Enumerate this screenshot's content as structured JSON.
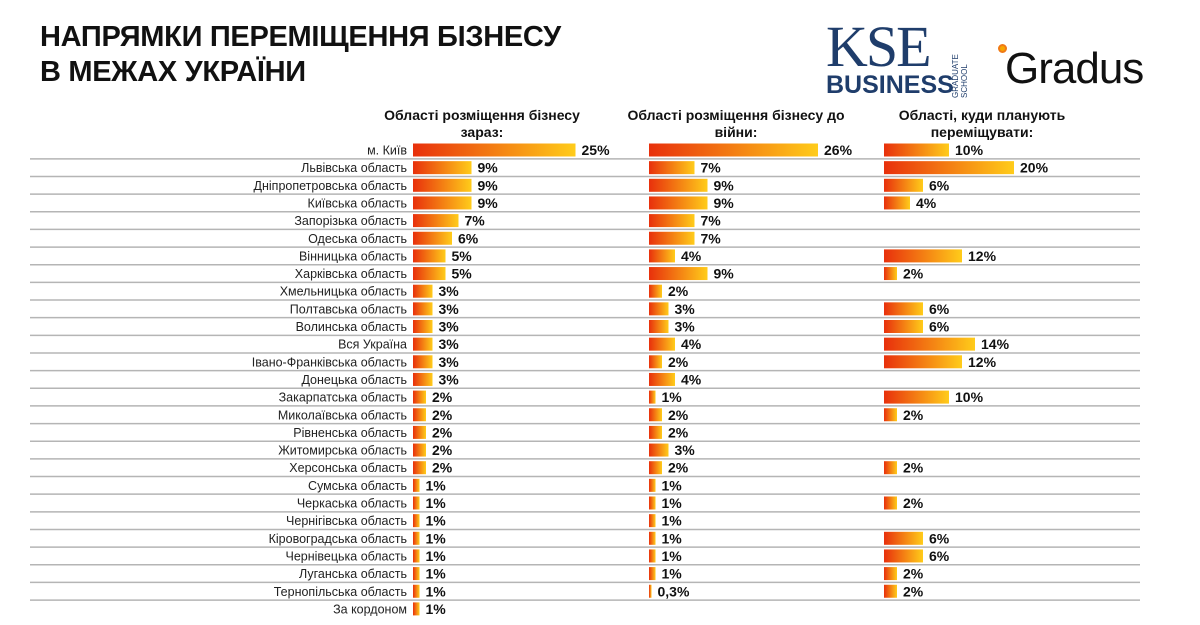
{
  "title_lines": [
    "НАПРЯМКИ ПЕРЕМІЩЕННЯ БІЗНЕСУ",
    "В МЕЖАХ УКРАЇНИ"
  ],
  "logos": {
    "kse": "KSE",
    "kse_sub": "GRADUATE SCHOOL",
    "kse_business": "BUSINESS",
    "gradus": "Gradus"
  },
  "colors": {
    "bar_start": "#e8300c",
    "bar_end": "#ffcc1a",
    "separator": "#b5b5b5"
  },
  "chart_data": {
    "type": "bar",
    "orientation": "horizontal",
    "categories": [
      "м. Київ",
      "Львівська область",
      "Дніпропетровська область",
      "Київська область",
      "Запорізька область",
      "Одеська область",
      "Вінницька область",
      "Харківська область",
      "Хмельницька область",
      "Полтавська область",
      "Волинська область",
      "Вся Україна",
      "Івано-Франківська область",
      "Донецька область",
      "Закарпатська область",
      "Миколаївська область",
      "Рівненська область",
      "Житомирська область",
      "Херсонська область",
      "Сумська область",
      "Черкаська область",
      "Чернігівська область",
      "Кіровоградська область",
      "Чернівецька область",
      "Луганська область",
      "Тернопільська область",
      "За кордоном"
    ],
    "series": [
      {
        "name": "Області розміщення бізнесу зараз:",
        "values": [
          25,
          9,
          9,
          9,
          7,
          6,
          5,
          5,
          3,
          3,
          3,
          3,
          3,
          3,
          2,
          2,
          2,
          2,
          2,
          1,
          1,
          1,
          1,
          1,
          1,
          1,
          1
        ],
        "labels": [
          "25%",
          "9%",
          "9%",
          "9%",
          "7%",
          "6%",
          "5%",
          "5%",
          "3%",
          "3%",
          "3%",
          "3%",
          "3%",
          "3%",
          "2%",
          "2%",
          "2%",
          "2%",
          "2%",
          "1%",
          "1%",
          "1%",
          "1%",
          "1%",
          "1%",
          "1%",
          "1%"
        ]
      },
      {
        "name": "Області розміщення бізнесу до війни:",
        "values": [
          26,
          7,
          9,
          9,
          7,
          7,
          4,
          9,
          2,
          3,
          3,
          4,
          2,
          4,
          1,
          2,
          2,
          3,
          2,
          1,
          1,
          1,
          1,
          1,
          1,
          0.3,
          null
        ],
        "labels": [
          "26%",
          "7%",
          "9%",
          "9%",
          "7%",
          "7%",
          "4%",
          "9%",
          "2%",
          "3%",
          "3%",
          "4%",
          "2%",
          "4%",
          "1%",
          "2%",
          "2%",
          "3%",
          "2%",
          "1%",
          "1%",
          "1%",
          "1%",
          "1%",
          "1%",
          "0,3%",
          null
        ]
      },
      {
        "name": "Області, куди планують переміщувати:",
        "values": [
          10,
          20,
          6,
          4,
          null,
          null,
          12,
          2,
          null,
          6,
          6,
          14,
          12,
          null,
          10,
          2,
          null,
          null,
          2,
          null,
          2,
          null,
          6,
          6,
          2,
          2,
          null
        ],
        "labels": [
          "10%",
          "20%",
          "6%",
          "4%",
          null,
          null,
          "12%",
          "2%",
          null,
          "6%",
          "6%",
          "14%",
          "12%",
          null,
          "10%",
          "2%",
          null,
          null,
          "2%",
          null,
          "2%",
          null,
          "6%",
          "6%",
          "2%",
          "2%",
          null
        ]
      }
    ],
    "unit": "%"
  }
}
